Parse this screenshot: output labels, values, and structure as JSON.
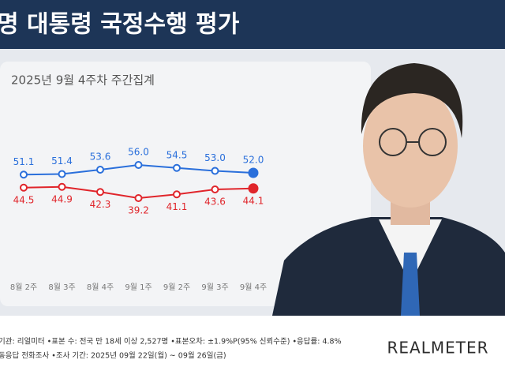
{
  "chart_data": {
    "type": "line",
    "title": "명 대통령 국정수행 평가",
    "subtitle": "2025년 9월 4주차 주간집계",
    "categories": [
      "8월 2주",
      "8월 3주",
      "8월 4주",
      "9월 1주",
      "9월 2주",
      "9월 3주",
      "9월 4주"
    ],
    "series": [
      {
        "color": "#2a6fdb",
        "values": [
          51.1,
          51.4,
          53.6,
          56.0,
          54.5,
          53.0,
          52.0
        ],
        "value_labels": [
          "51.1",
          "51.4",
          "53.6",
          "56.0",
          "54.5",
          "53.0",
          "52.0"
        ]
      },
      {
        "color": "#e0252b",
        "values": [
          44.5,
          44.9,
          42.3,
          39.2,
          41.1,
          43.6,
          44.1
        ]
      }
    ],
    "ylim": [
      0,
      100
    ],
    "notes": [
      "기관: 리얼미터 •표본 수: 전국 만 18세 이상 2,527명 •표본오차: ±1.9%P(95% 신뢰수준) •응답률: 4.8%",
      "동응답 전화조사 •조사 기간: 2025년 09월 22일(월) ~ 09월 26일(금)"
    ],
    "brand": "REALMETER"
  }
}
